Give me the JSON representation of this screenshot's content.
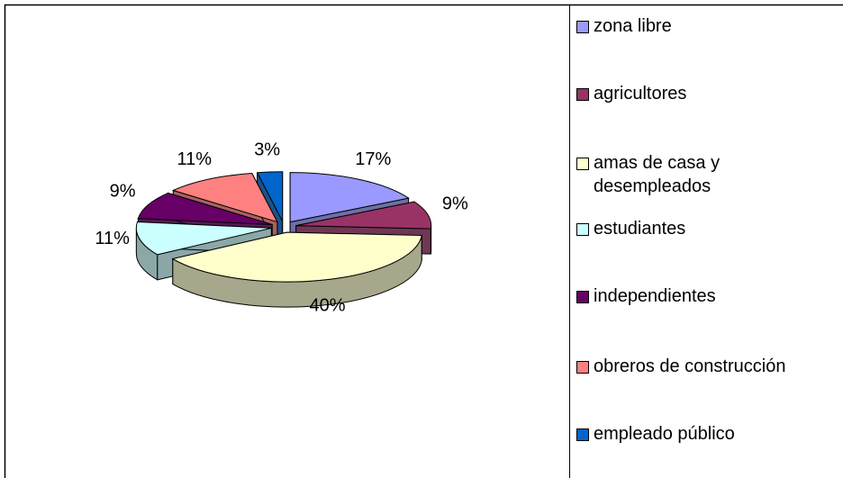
{
  "chart_data": {
    "type": "pie3d",
    "categories": [
      "zona libre",
      "agricultores",
      "amas de casa y desempleados",
      "estudiantes",
      "independientes",
      "obreros de construcción",
      "empleado público"
    ],
    "values": [
      17,
      9,
      40,
      11,
      9,
      11,
      3
    ],
    "value_labels": [
      "17%",
      "9%",
      "40%",
      "11%",
      "9%",
      "11%",
      "3%"
    ],
    "colors": [
      "#9999ff",
      "#993366",
      "#ffffcc",
      "#ccffff",
      "#660066",
      "#ff8080",
      "#0066cc"
    ],
    "legend": "right"
  }
}
